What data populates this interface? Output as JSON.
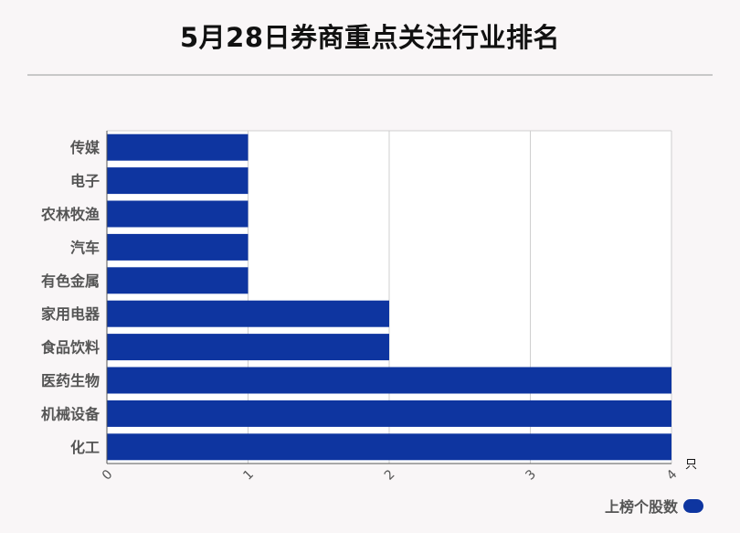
{
  "title": "5月28日券商重点关注行业排名",
  "chart_data": {
    "type": "bar",
    "orientation": "horizontal",
    "categories": [
      "传媒",
      "电子",
      "农林牧渔",
      "汽车",
      "有色金属",
      "家用电器",
      "食品饮料",
      "医药生物",
      "机械设备",
      "化工"
    ],
    "series": [
      {
        "name": "上榜个股数",
        "values": [
          1,
          1,
          1,
          1,
          1,
          2,
          2,
          4,
          4,
          4
        ]
      }
    ],
    "xlim": [
      0,
      4
    ],
    "xticks": [
      "0",
      "1",
      "2",
      "3",
      "4"
    ],
    "x_unit": "只",
    "grid": true,
    "legend": "bottom-right",
    "bar_color": "#0e35a0"
  }
}
